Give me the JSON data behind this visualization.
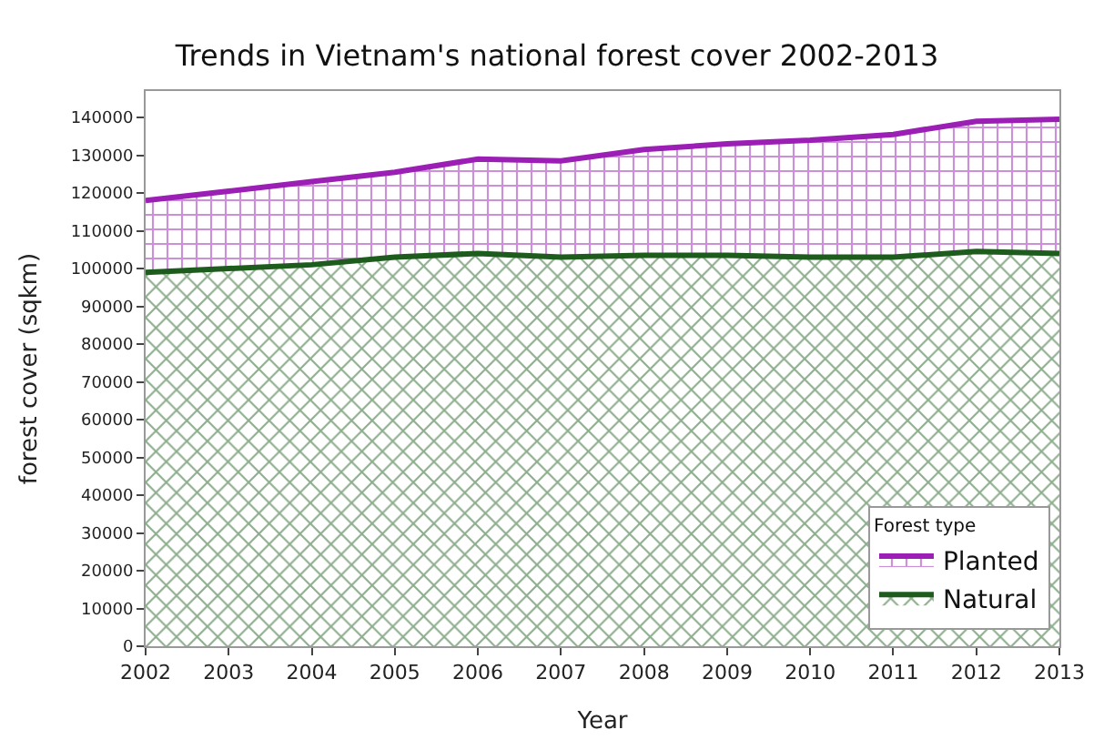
{
  "chart_data": {
    "type": "area",
    "stacked": true,
    "title": "Trends in Vietnam's national forest cover 2002-2013",
    "xlabel": "Year",
    "ylabel": "forest cover (sqkm)",
    "legend_title": "Forest type",
    "legend": "bottom right",
    "x": [
      2002,
      2003,
      2004,
      2005,
      2006,
      2007,
      2008,
      2009,
      2010,
      2011,
      2012,
      2013
    ],
    "series": [
      {
        "name": "Natural",
        "color": "#1e5c1e",
        "values": [
          99000,
          100000,
          101000,
          103000,
          104000,
          103000,
          103500,
          103500,
          103000,
          103000,
          104500,
          104000
        ]
      },
      {
        "name": "Planted",
        "color": "#9b1fb5",
        "values": [
          19000,
          20500,
          22000,
          22500,
          25000,
          25500,
          28000,
          29500,
          31000,
          32500,
          34500,
          35500
        ]
      }
    ],
    "xlim": [
      2002,
      2013
    ],
    "xticks": [
      2002,
      2003,
      2004,
      2005,
      2006,
      2007,
      2008,
      2009,
      2010,
      2011,
      2012,
      2013
    ],
    "ylim": [
      0,
      147000
    ],
    "yticks": [
      0,
      10000,
      20000,
      30000,
      40000,
      50000,
      60000,
      70000,
      80000,
      90000,
      100000,
      110000,
      120000,
      130000,
      140000
    ]
  }
}
